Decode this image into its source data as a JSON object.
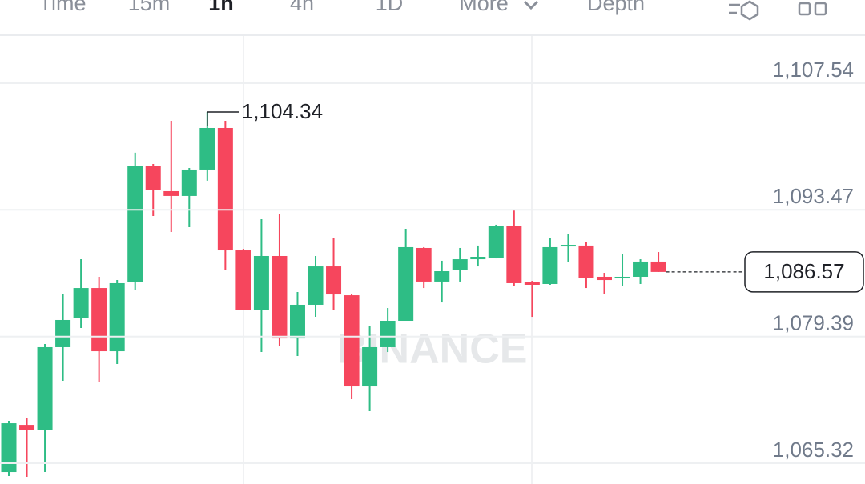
{
  "toolbar": {
    "tabs": [
      "Time",
      "15m",
      "1h",
      "4h",
      "1D",
      "More",
      "Depth"
    ],
    "active": 2
  },
  "chart_data": {
    "type": "candlestick",
    "watermark": "BINANCE",
    "up_color": "#2ebd85",
    "down_color": "#f6465d",
    "ylim": [
      1063.01,
      1112.78
    ],
    "yticks": [
      {
        "value": 1107.54,
        "label": "1,107.54"
      },
      {
        "value": 1093.47,
        "label": "1,093.47"
      },
      {
        "value": 1079.39,
        "label": "1,079.39"
      },
      {
        "value": 1065.32,
        "label": "1,065.32"
      }
    ],
    "grid": true,
    "high_marker": {
      "value": 1104.34,
      "label": "1,104.34",
      "index": 11
    },
    "last_price": {
      "value": 1086.57,
      "label": "1,086.57"
    },
    "open": [
      1064.34,
      1069.58,
      1069.05,
      1078.21,
      1081.41,
      1084.78,
      1077.76,
      1085.41,
      1098.3,
      1095.54,
      1095.01,
      1097.94,
      1102.56,
      1088.96,
      1082.38,
      1088.34,
      1079.18,
      1082.92,
      1087.18,
      1083.98,
      1073.85,
      1078.21,
      1081.14,
      1089.23,
      1085.5,
      1086.74,
      1087.98,
      1088.16,
      1091.63,
      1085.41,
      1085.23,
      1089.41,
      1089.5,
      1086.03,
      1085.85,
      1086.03,
      1087.72
    ],
    "high": [
      1070.03,
      1070.38,
      1078.56,
      1084.16,
      1087.98,
      1086.03,
      1085.67,
      1099.81,
      1098.56,
      1103.36,
      1098.12,
      1104.34,
      1103.36,
      1089.14,
      1092.43,
      1092.96,
      1084.34,
      1088.34,
      1090.38,
      1084.16,
      1080.52,
      1082.56,
      1091.36,
      1089.32,
      1087.81,
      1089.23,
      1089.5,
      1091.81,
      1093.5,
      1085.58,
      1090.3,
      1090.74,
      1089.85,
      1086.47,
      1088.52,
      1087.98,
      1088.78
    ],
    "low": [
      1063.9,
      1063.81,
      1064.34,
      1074.47,
      1080.34,
      1074.3,
      1076.34,
      1084.52,
      1092.78,
      1091.01,
      1091.54,
      1096.7,
      1086.83,
      1082.3,
      1077.67,
      1078.38,
      1077.23,
      1081.58,
      1082.3,
      1072.43,
      1071.1,
      1077.67,
      1081.14,
      1084.78,
      1083.18,
      1085.5,
      1087.18,
      1088.07,
      1085.05,
      1081.58,
      1085.14,
      1087.72,
      1084.78,
      1084.16,
      1085.05,
      1085.23,
      1086.57
    ],
    "close": [
      1069.76,
      1069.05,
      1078.21,
      1081.23,
      1084.78,
      1077.76,
      1085.32,
      1098.38,
      1095.63,
      1095.01,
      1097.94,
      1102.56,
      1088.96,
      1082.38,
      1088.34,
      1079.18,
      1082.92,
      1087.18,
      1084.07,
      1073.85,
      1078.21,
      1081.14,
      1089.32,
      1085.5,
      1086.65,
      1087.98,
      1088.25,
      1091.63,
      1085.32,
      1085.14,
      1089.32,
      1089.58,
      1085.94,
      1085.67,
      1086.03,
      1087.72,
      1086.57
    ]
  }
}
